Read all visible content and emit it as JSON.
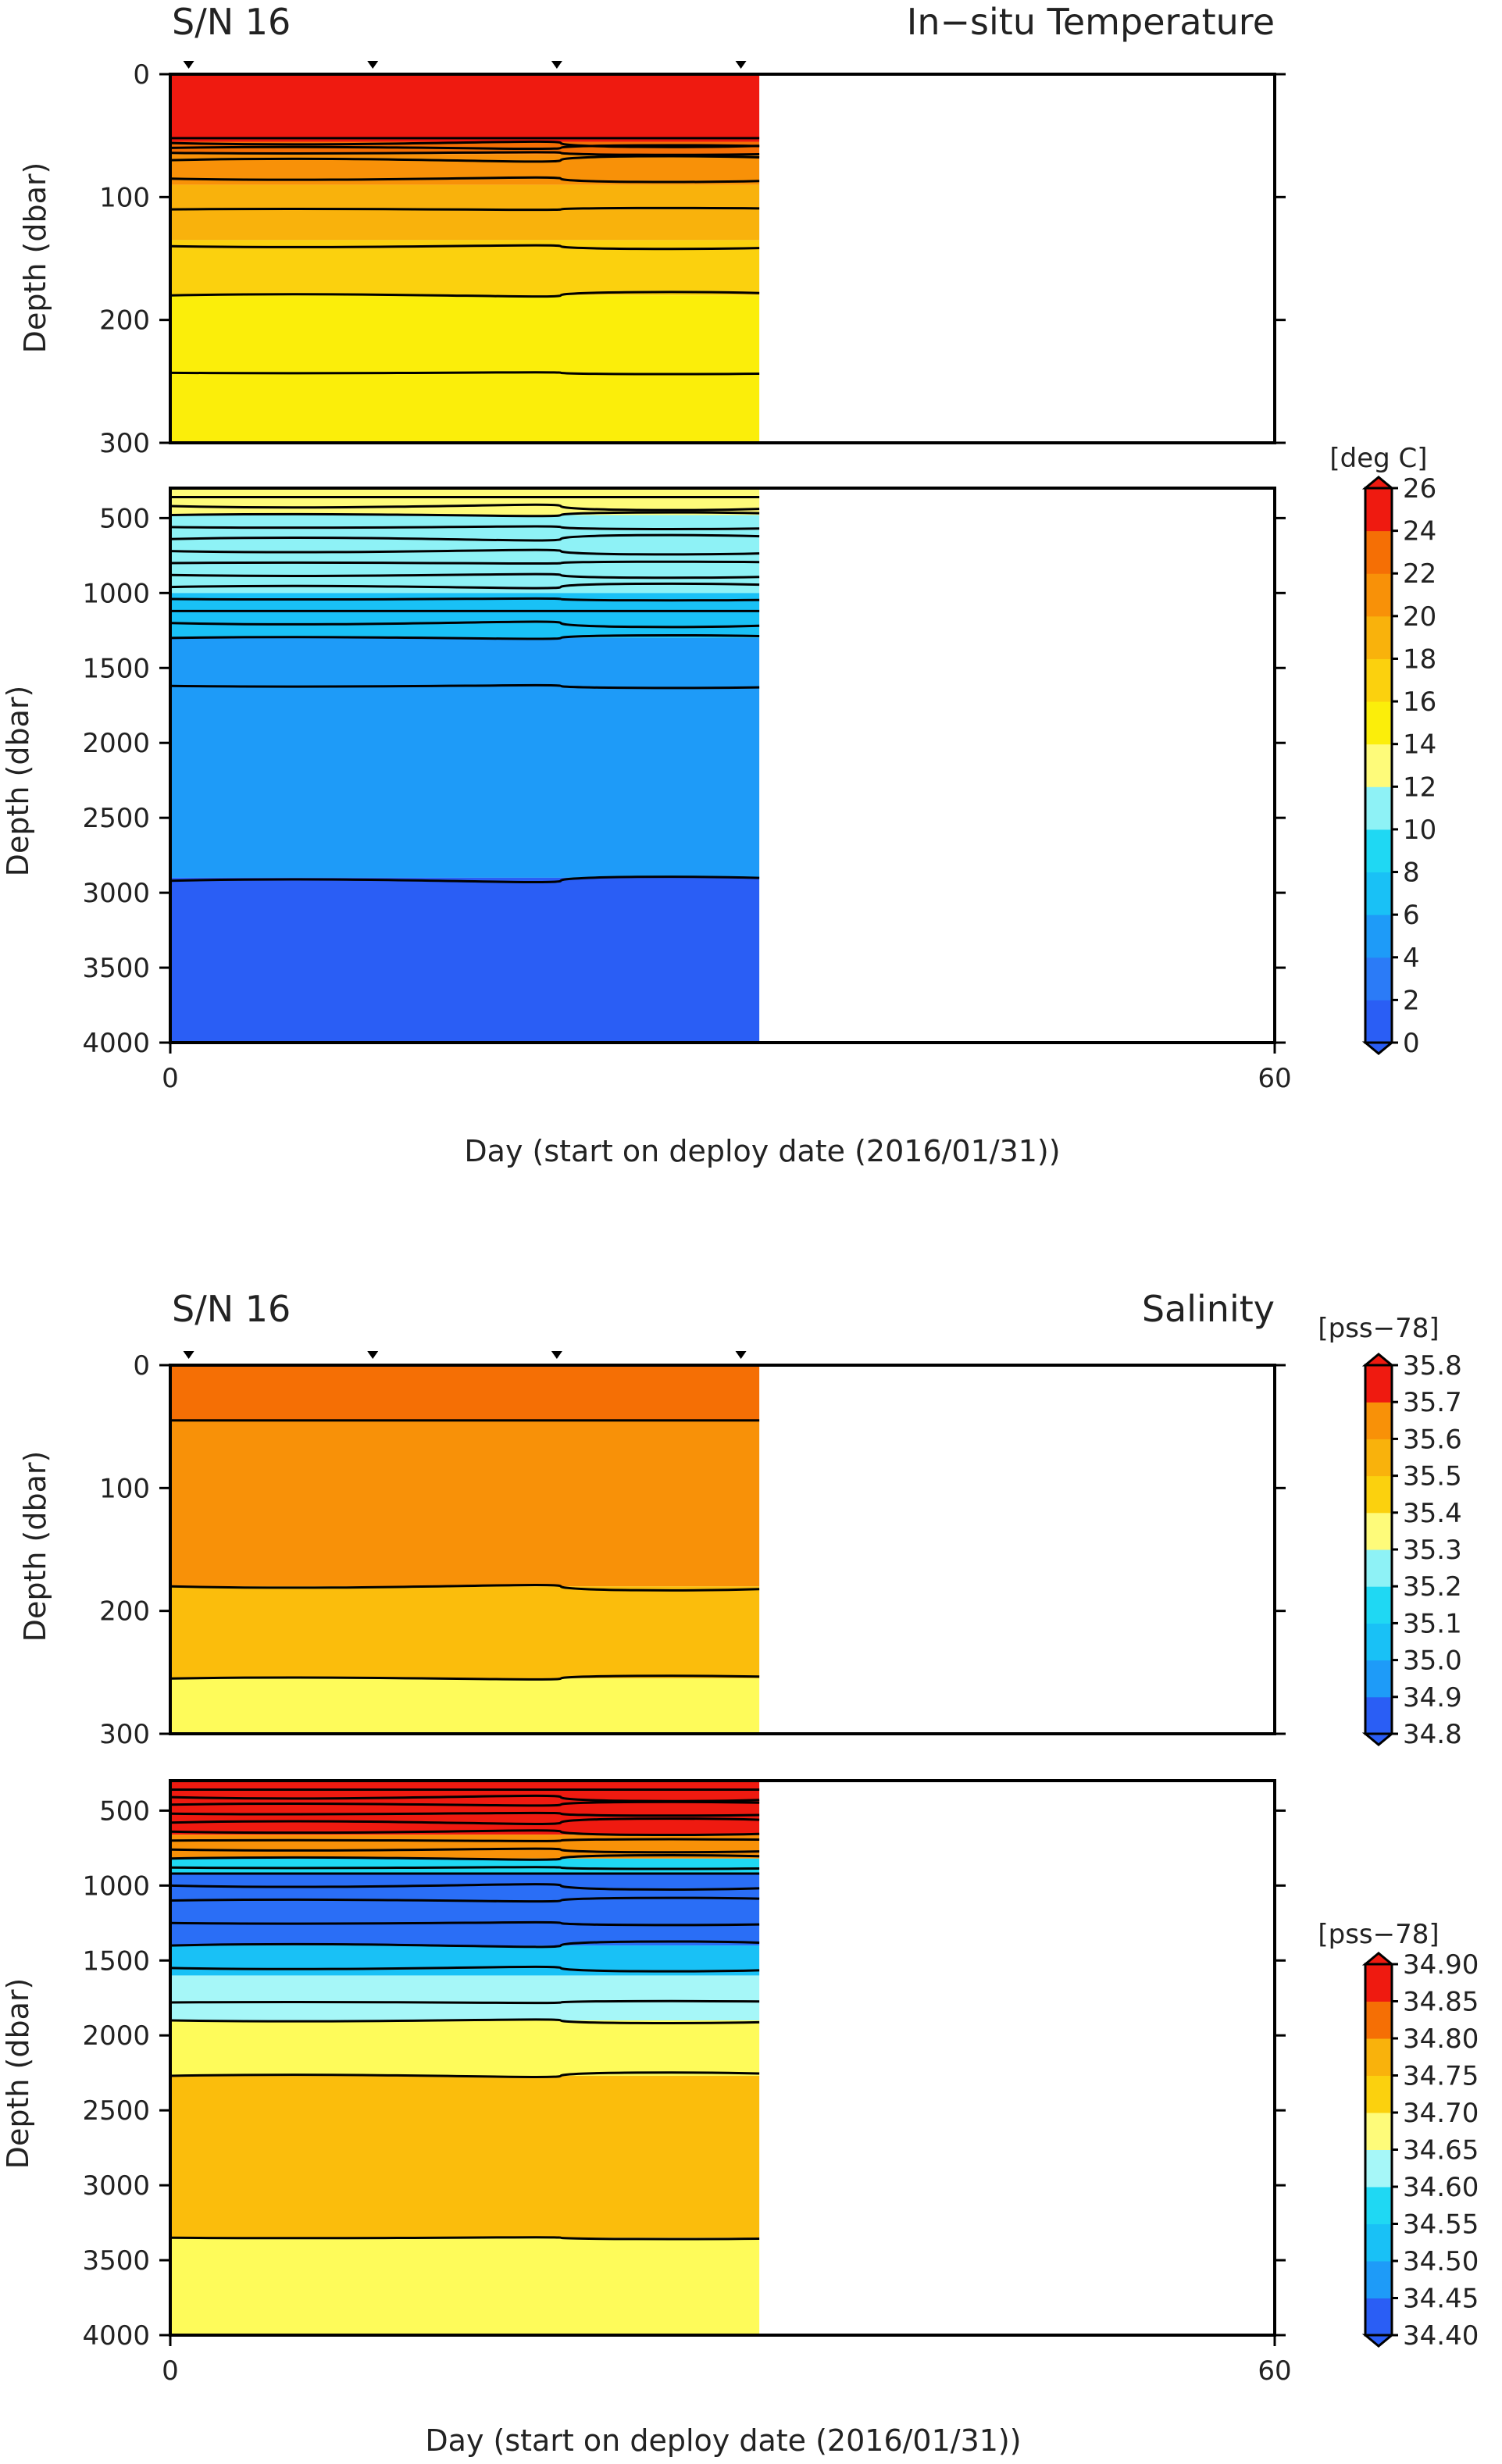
{
  "chart_data": [
    {
      "type": "heatmap",
      "panel": "temperature",
      "title": "S/N 16",
      "variable_title": "In−situ Temperature",
      "xlabel": "Day (start on deploy date (2016/01/31))",
      "ylabel": "Depth (dbar)",
      "xlim": [
        0,
        60
      ],
      "x_ticks": [
        "0",
        "60"
      ],
      "data_x_range": [
        0,
        32
      ],
      "marker_days": [
        1,
        11,
        21,
        31
      ],
      "upper_ylim": [
        0,
        300
      ],
      "upper_y_ticks": [
        "0",
        "100",
        "200",
        "300"
      ],
      "lower_ylim": [
        300,
        4000
      ],
      "lower_y_ticks": [
        "500",
        "1000",
        "1500",
        "2000",
        "2500",
        "3000",
        "3500",
        "4000"
      ],
      "colorbar": {
        "unit": "[deg C]",
        "levels": [
          "0",
          "2",
          "4",
          "6",
          "8",
          "10",
          "12",
          "14",
          "16",
          "18",
          "20",
          "22",
          "24",
          "26"
        ],
        "colors": [
          "#2a5ef5",
          "#2b7bf7",
          "#1e9bf8",
          "#19c1f6",
          "#1fd8f3",
          "#8ef2f6",
          "#fefb7a",
          "#fbee0a",
          "#fbd10e",
          "#f9b20c",
          "#f89108",
          "#f56f05",
          "#ef1a10"
        ]
      },
      "upper_layers": [
        {
          "depth_top": 0,
          "depth_bottom": 55,
          "value_range": "24–26",
          "color": "#ef1a10"
        },
        {
          "depth_top": 55,
          "depth_bottom": 65,
          "value_range": "22–24",
          "color": "#f56f05"
        },
        {
          "depth_top": 65,
          "depth_bottom": 90,
          "value_range": "20–22",
          "color": "#f89108"
        },
        {
          "depth_top": 90,
          "depth_bottom": 135,
          "value_range": "18–20",
          "color": "#f9b20c"
        },
        {
          "depth_top": 135,
          "depth_bottom": 180,
          "value_range": "16–18",
          "color": "#fbd10e"
        },
        {
          "depth_top": 180,
          "depth_bottom": 300,
          "value_range": "14–16",
          "color": "#fbee0a"
        }
      ],
      "upper_contour_depths": [
        52,
        56,
        60,
        64,
        70,
        85,
        110,
        140,
        180,
        243
      ],
      "lower_layers": [
        {
          "depth_top": 300,
          "depth_bottom": 480,
          "value_range": "12–14",
          "color": "#fefb7a"
        },
        {
          "depth_top": 480,
          "depth_bottom": 1000,
          "value_range": "8–12",
          "color": "#8ef2f6"
        },
        {
          "depth_top": 1000,
          "depth_bottom": 1300,
          "value_range": "4–8",
          "color": "#19c1f6"
        },
        {
          "depth_top": 1300,
          "depth_bottom": 2900,
          "value_range": "2–4",
          "color": "#1e9bf8"
        },
        {
          "depth_top": 2900,
          "depth_bottom": 4000,
          "value_range": "0–2",
          "color": "#2a5ef5"
        }
      ],
      "lower_contour_depths": [
        360,
        420,
        480,
        560,
        640,
        720,
        800,
        880,
        960,
        1040,
        1120,
        1200,
        1300,
        1620,
        2920
      ]
    },
    {
      "type": "heatmap",
      "panel": "salinity",
      "title": "S/N 16",
      "variable_title": "Salinity",
      "xlabel": "Day (start on deploy date (2016/01/31))",
      "ylabel": "Depth (dbar)",
      "xlim": [
        0,
        60
      ],
      "x_ticks": [
        "0",
        "60"
      ],
      "data_x_range": [
        0,
        32
      ],
      "marker_days": [
        1,
        11,
        21,
        31
      ],
      "upper_ylim": [
        0,
        300
      ],
      "upper_y_ticks": [
        "0",
        "100",
        "200",
        "300"
      ],
      "lower_ylim": [
        300,
        4000
      ],
      "lower_y_ticks": [
        "500",
        "1000",
        "1500",
        "2000",
        "2500",
        "3000",
        "3500",
        "4000"
      ],
      "colorbar_upper": {
        "unit": "[pss−78]",
        "levels": [
          "34.8",
          "34.9",
          "35.0",
          "35.1",
          "35.2",
          "35.3",
          "35.4",
          "35.5",
          "35.6",
          "35.7",
          "35.8"
        ],
        "colors": [
          "#2a5ef5",
          "#1e9bf8",
          "#19c1f6",
          "#1fd8f3",
          "#8ef2f6",
          "#fefb7a",
          "#fbd10e",
          "#f9b20c",
          "#f89108",
          "#ef1a10"
        ]
      },
      "colorbar_lower": {
        "unit": "[pss−78]",
        "levels": [
          "34.40",
          "34.45",
          "34.50",
          "34.55",
          "34.60",
          "34.65",
          "34.70",
          "34.75",
          "34.80",
          "34.85",
          "34.90"
        ],
        "colors": [
          "#2a5ef5",
          "#1e9bf8",
          "#19c1f6",
          "#1fd8f3",
          "#a6f7f8",
          "#fefb7a",
          "#fbd10e",
          "#f9b20c",
          "#f56f05",
          "#ef1a10"
        ]
      },
      "upper_layers": [
        {
          "depth_top": 0,
          "depth_bottom": 45,
          "value_range": "35.6–35.7",
          "color": "#f56f05"
        },
        {
          "depth_top": 45,
          "depth_bottom": 180,
          "value_range": "35.5–35.6",
          "color": "#f89108"
        },
        {
          "depth_top": 180,
          "depth_bottom": 255,
          "value_range": "35.4–35.5",
          "color": "#fbbd0c"
        },
        {
          "depth_top": 255,
          "depth_bottom": 300,
          "value_range": "35.3–35.4",
          "color": "#fefb5a"
        }
      ],
      "upper_contour_depths": [
        45,
        180,
        255
      ],
      "lower_layers": [
        {
          "depth_top": 300,
          "depth_bottom": 660,
          "value_range": "34.85–34.90",
          "color": "#ef1a10"
        },
        {
          "depth_top": 660,
          "depth_bottom": 820,
          "value_range": "34.75–34.85",
          "color": "#f89108"
        },
        {
          "depth_top": 820,
          "depth_bottom": 920,
          "value_range": "34.55–34.75",
          "color": "#1fd8f3"
        },
        {
          "depth_top": 920,
          "depth_bottom": 1400,
          "value_range": "34.45–34.55",
          "color": "#2a6ef6"
        },
        {
          "depth_top": 1400,
          "depth_bottom": 1600,
          "value_range": "34.50–34.55",
          "color": "#19c1f6"
        },
        {
          "depth_top": 1600,
          "depth_bottom": 1900,
          "value_range": "34.60–34.65",
          "color": "#a6f7f8"
        },
        {
          "depth_top": 1900,
          "depth_bottom": 2270,
          "value_range": "34.65–34.70",
          "color": "#fefb5a"
        },
        {
          "depth_top": 2270,
          "depth_bottom": 3350,
          "value_range": "34.70–34.75",
          "color": "#fbbd0c"
        },
        {
          "depth_top": 3350,
          "depth_bottom": 4000,
          "value_range": "34.65–34.70",
          "color": "#fefb5a"
        }
      ],
      "lower_contour_depths": [
        360,
        410,
        460,
        520,
        580,
        640,
        700,
        760,
        820,
        880,
        920,
        1000,
        1100,
        1250,
        1400,
        1550,
        1780,
        1900,
        2270,
        3350
      ]
    }
  ]
}
